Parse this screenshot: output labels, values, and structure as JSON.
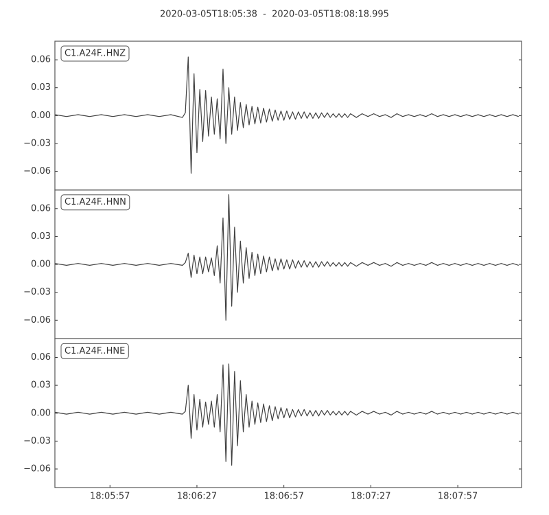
{
  "title": "2020-03-05T18:05:38  -  2020-03-05T18:08:18.995",
  "chart_data": [
    {
      "type": "line",
      "label": "C1.A24F..HNZ",
      "color": "#404040",
      "x": [
        65138,
        65142,
        65146,
        65150,
        65154,
        65158,
        65162,
        65166,
        65170,
        65174,
        65178,
        65182,
        65183,
        65184,
        65185,
        65186,
        65187,
        65188,
        65189,
        65190,
        65191,
        65192,
        65193,
        65194,
        65195,
        65196,
        65197,
        65198,
        65199,
        65200,
        65201,
        65202,
        65203,
        65204,
        65205,
        65206,
        65207,
        65208,
        65209,
        65210,
        65211,
        65212,
        65213,
        65214,
        65215,
        65216,
        65217,
        65218,
        65219,
        65220,
        65221,
        65222,
        65223,
        65224,
        65225,
        65226,
        65227,
        65228,
        65229,
        65230,
        65231,
        65232,
        65233,
        65234,
        65235,
        65236,
        65237,
        65238,
        65239,
        65240,
        65242,
        65244,
        65246,
        65248,
        65250,
        65252,
        65254,
        65256,
        65258,
        65260,
        65262,
        65264,
        65266,
        65268,
        65270,
        65272,
        65274,
        65276,
        65278,
        65280,
        65282,
        65284,
        65286,
        65288,
        65290,
        65292,
        65294,
        65296,
        65298
      ],
      "values": [
        0.001,
        -0.001,
        0.001,
        -0.001,
        0.001,
        -0.001,
        0.001,
        -0.001,
        0.001,
        -0.001,
        0.001,
        -0.002,
        0.003,
        0.063,
        -0.062,
        0.045,
        -0.04,
        0.028,
        -0.028,
        0.027,
        -0.022,
        0.02,
        -0.02,
        0.018,
        -0.025,
        0.05,
        -0.03,
        0.03,
        -0.02,
        0.02,
        -0.016,
        0.014,
        -0.013,
        0.012,
        -0.01,
        0.01,
        -0.009,
        0.009,
        -0.008,
        0.008,
        -0.007,
        0.007,
        -0.006,
        0.006,
        -0.005,
        0.005,
        -0.005,
        0.005,
        -0.004,
        0.004,
        -0.004,
        0.004,
        -0.003,
        0.004,
        -0.003,
        0.003,
        -0.003,
        0.003,
        -0.003,
        0.003,
        -0.002,
        0.003,
        -0.002,
        0.002,
        -0.002,
        0.002,
        -0.002,
        0.002,
        -0.002,
        0.002,
        -0.002,
        0.002,
        -0.001,
        0.002,
        -0.001,
        0.001,
        -0.002,
        0.002,
        -0.001,
        0.001,
        -0.001,
        0.001,
        -0.001,
        0.002,
        -0.001,
        0.001,
        -0.001,
        0.001,
        -0.001,
        0.001,
        -0.001,
        0.001,
        -0.001,
        0.001,
        -0.001,
        0.001,
        -0.001,
        0.001,
        -0.001
      ],
      "xlim": [
        65138,
        65299
      ],
      "ylim": [
        -0.08,
        0.08
      ],
      "yticks": [
        {
          "value": -0.06,
          "label": "−0.06"
        },
        {
          "value": -0.03,
          "label": "−0.03"
        },
        {
          "value": 0,
          "label": "0.00"
        },
        0.03,
        0.06
      ]
    },
    {
      "type": "line",
      "label": "C1.A24F..HNN",
      "color": "#404040",
      "x": [
        65138,
        65142,
        65146,
        65150,
        65154,
        65158,
        65162,
        65166,
        65170,
        65174,
        65178,
        65182,
        65183,
        65184,
        65185,
        65186,
        65187,
        65188,
        65189,
        65190,
        65191,
        65192,
        65193,
        65194,
        65195,
        65196,
        65197,
        65198,
        65199,
        65200,
        65201,
        65202,
        65203,
        65204,
        65205,
        65206,
        65207,
        65208,
        65209,
        65210,
        65211,
        65212,
        65213,
        65214,
        65215,
        65216,
        65217,
        65218,
        65219,
        65220,
        65221,
        65222,
        65223,
        65224,
        65225,
        65226,
        65227,
        65228,
        65229,
        65230,
        65231,
        65232,
        65233,
        65234,
        65235,
        65236,
        65237,
        65238,
        65239,
        65240,
        65242,
        65244,
        65246,
        65248,
        65250,
        65252,
        65254,
        65256,
        65258,
        65260,
        65262,
        65264,
        65266,
        65268,
        65270,
        65272,
        65274,
        65276,
        65278,
        65280,
        65282,
        65284,
        65286,
        65288,
        65290,
        65292,
        65294,
        65296,
        65298
      ],
      "values": [
        0.001,
        -0.001,
        0.001,
        -0.001,
        0.001,
        -0.001,
        0.001,
        -0.001,
        0.001,
        -0.001,
        0.001,
        -0.001,
        0.002,
        0.012,
        -0.014,
        0.01,
        -0.01,
        0.008,
        -0.01,
        0.008,
        -0.008,
        0.007,
        -0.012,
        0.02,
        -0.02,
        0.05,
        -0.06,
        0.075,
        -0.045,
        0.04,
        -0.03,
        0.025,
        -0.02,
        0.018,
        -0.015,
        0.013,
        -0.012,
        0.011,
        -0.01,
        0.009,
        -0.008,
        0.008,
        -0.007,
        0.006,
        -0.006,
        0.006,
        -0.005,
        0.005,
        -0.005,
        0.005,
        -0.004,
        0.004,
        -0.003,
        0.004,
        -0.003,
        0.003,
        -0.003,
        0.003,
        -0.003,
        0.003,
        -0.002,
        0.003,
        -0.002,
        0.002,
        -0.002,
        0.002,
        -0.002,
        0.002,
        -0.002,
        0.002,
        -0.002,
        0.002,
        -0.001,
        0.002,
        -0.001,
        0.001,
        -0.002,
        0.002,
        -0.001,
        0.001,
        -0.001,
        0.001,
        -0.001,
        0.002,
        -0.001,
        0.001,
        -0.001,
        0.001,
        -0.001,
        0.001,
        -0.001,
        0.001,
        -0.001,
        0.001,
        -0.001,
        0.001,
        -0.001,
        0.001,
        -0.001
      ],
      "xlim": [
        65138,
        65299
      ],
      "ylim": [
        -0.08,
        0.08
      ],
      "yticks": [
        {
          "value": -0.06,
          "label": "−0.06"
        },
        {
          "value": -0.03,
          "label": "−0.03"
        },
        {
          "value": 0,
          "label": "0.00"
        },
        0.03,
        0.06
      ]
    },
    {
      "type": "line",
      "label": "C1.A24F..HNE",
      "color": "#404040",
      "x": [
        65138,
        65142,
        65146,
        65150,
        65154,
        65158,
        65162,
        65166,
        65170,
        65174,
        65178,
        65182,
        65183,
        65184,
        65185,
        65186,
        65187,
        65188,
        65189,
        65190,
        65191,
        65192,
        65193,
        65194,
        65195,
        65196,
        65197,
        65198,
        65199,
        65200,
        65201,
        65202,
        65203,
        65204,
        65205,
        65206,
        65207,
        65208,
        65209,
        65210,
        65211,
        65212,
        65213,
        65214,
        65215,
        65216,
        65217,
        65218,
        65219,
        65220,
        65221,
        65222,
        65223,
        65224,
        65225,
        65226,
        65227,
        65228,
        65229,
        65230,
        65231,
        65232,
        65233,
        65234,
        65235,
        65236,
        65237,
        65238,
        65239,
        65240,
        65242,
        65244,
        65246,
        65248,
        65250,
        65252,
        65254,
        65256,
        65258,
        65260,
        65262,
        65264,
        65266,
        65268,
        65270,
        65272,
        65274,
        65276,
        65278,
        65280,
        65282,
        65284,
        65286,
        65288,
        65290,
        65292,
        65294,
        65296,
        65298
      ],
      "values": [
        0.001,
        -0.001,
        0.001,
        -0.001,
        0.001,
        -0.001,
        0.001,
        -0.001,
        0.001,
        -0.001,
        0.001,
        -0.001,
        0.002,
        0.03,
        -0.027,
        0.02,
        -0.018,
        0.015,
        -0.015,
        0.012,
        -0.012,
        0.013,
        -0.015,
        0.02,
        -0.02,
        0.052,
        -0.052,
        0.053,
        -0.056,
        0.045,
        -0.035,
        0.035,
        -0.02,
        0.02,
        -0.015,
        0.013,
        -0.012,
        0.011,
        -0.01,
        0.01,
        -0.009,
        0.008,
        -0.008,
        0.007,
        -0.006,
        0.006,
        -0.005,
        0.005,
        -0.005,
        0.004,
        -0.004,
        0.004,
        -0.003,
        0.004,
        -0.003,
        0.003,
        -0.003,
        0.003,
        -0.003,
        0.003,
        -0.002,
        0.003,
        -0.002,
        0.002,
        -0.002,
        0.002,
        -0.002,
        0.002,
        -0.002,
        0.002,
        -0.002,
        0.002,
        -0.001,
        0.002,
        -0.001,
        0.001,
        -0.002,
        0.002,
        -0.001,
        0.001,
        -0.001,
        0.001,
        -0.001,
        0.002,
        -0.001,
        0.001,
        -0.001,
        0.001,
        -0.001,
        0.001,
        -0.001,
        0.001,
        -0.001,
        0.001,
        -0.001,
        0.001,
        -0.001,
        0.001,
        -0.001
      ],
      "xlim": [
        65138,
        65299
      ],
      "ylim": [
        -0.08,
        0.08
      ],
      "yticks": [
        {
          "value": -0.06,
          "label": "−0.06"
        },
        {
          "value": -0.03,
          "label": "−0.03"
        },
        {
          "value": 0,
          "label": "0.00"
        },
        0.03,
        0.06
      ],
      "xticks": [
        {
          "value": 65157,
          "label": "18:05:57"
        },
        {
          "value": 65187,
          "label": "18:06:27"
        },
        {
          "value": 65217,
          "label": "18:06:57"
        },
        {
          "value": 65247,
          "label": "18:07:27"
        },
        {
          "value": 65277,
          "label": "18:07:57"
        }
      ]
    }
  ]
}
